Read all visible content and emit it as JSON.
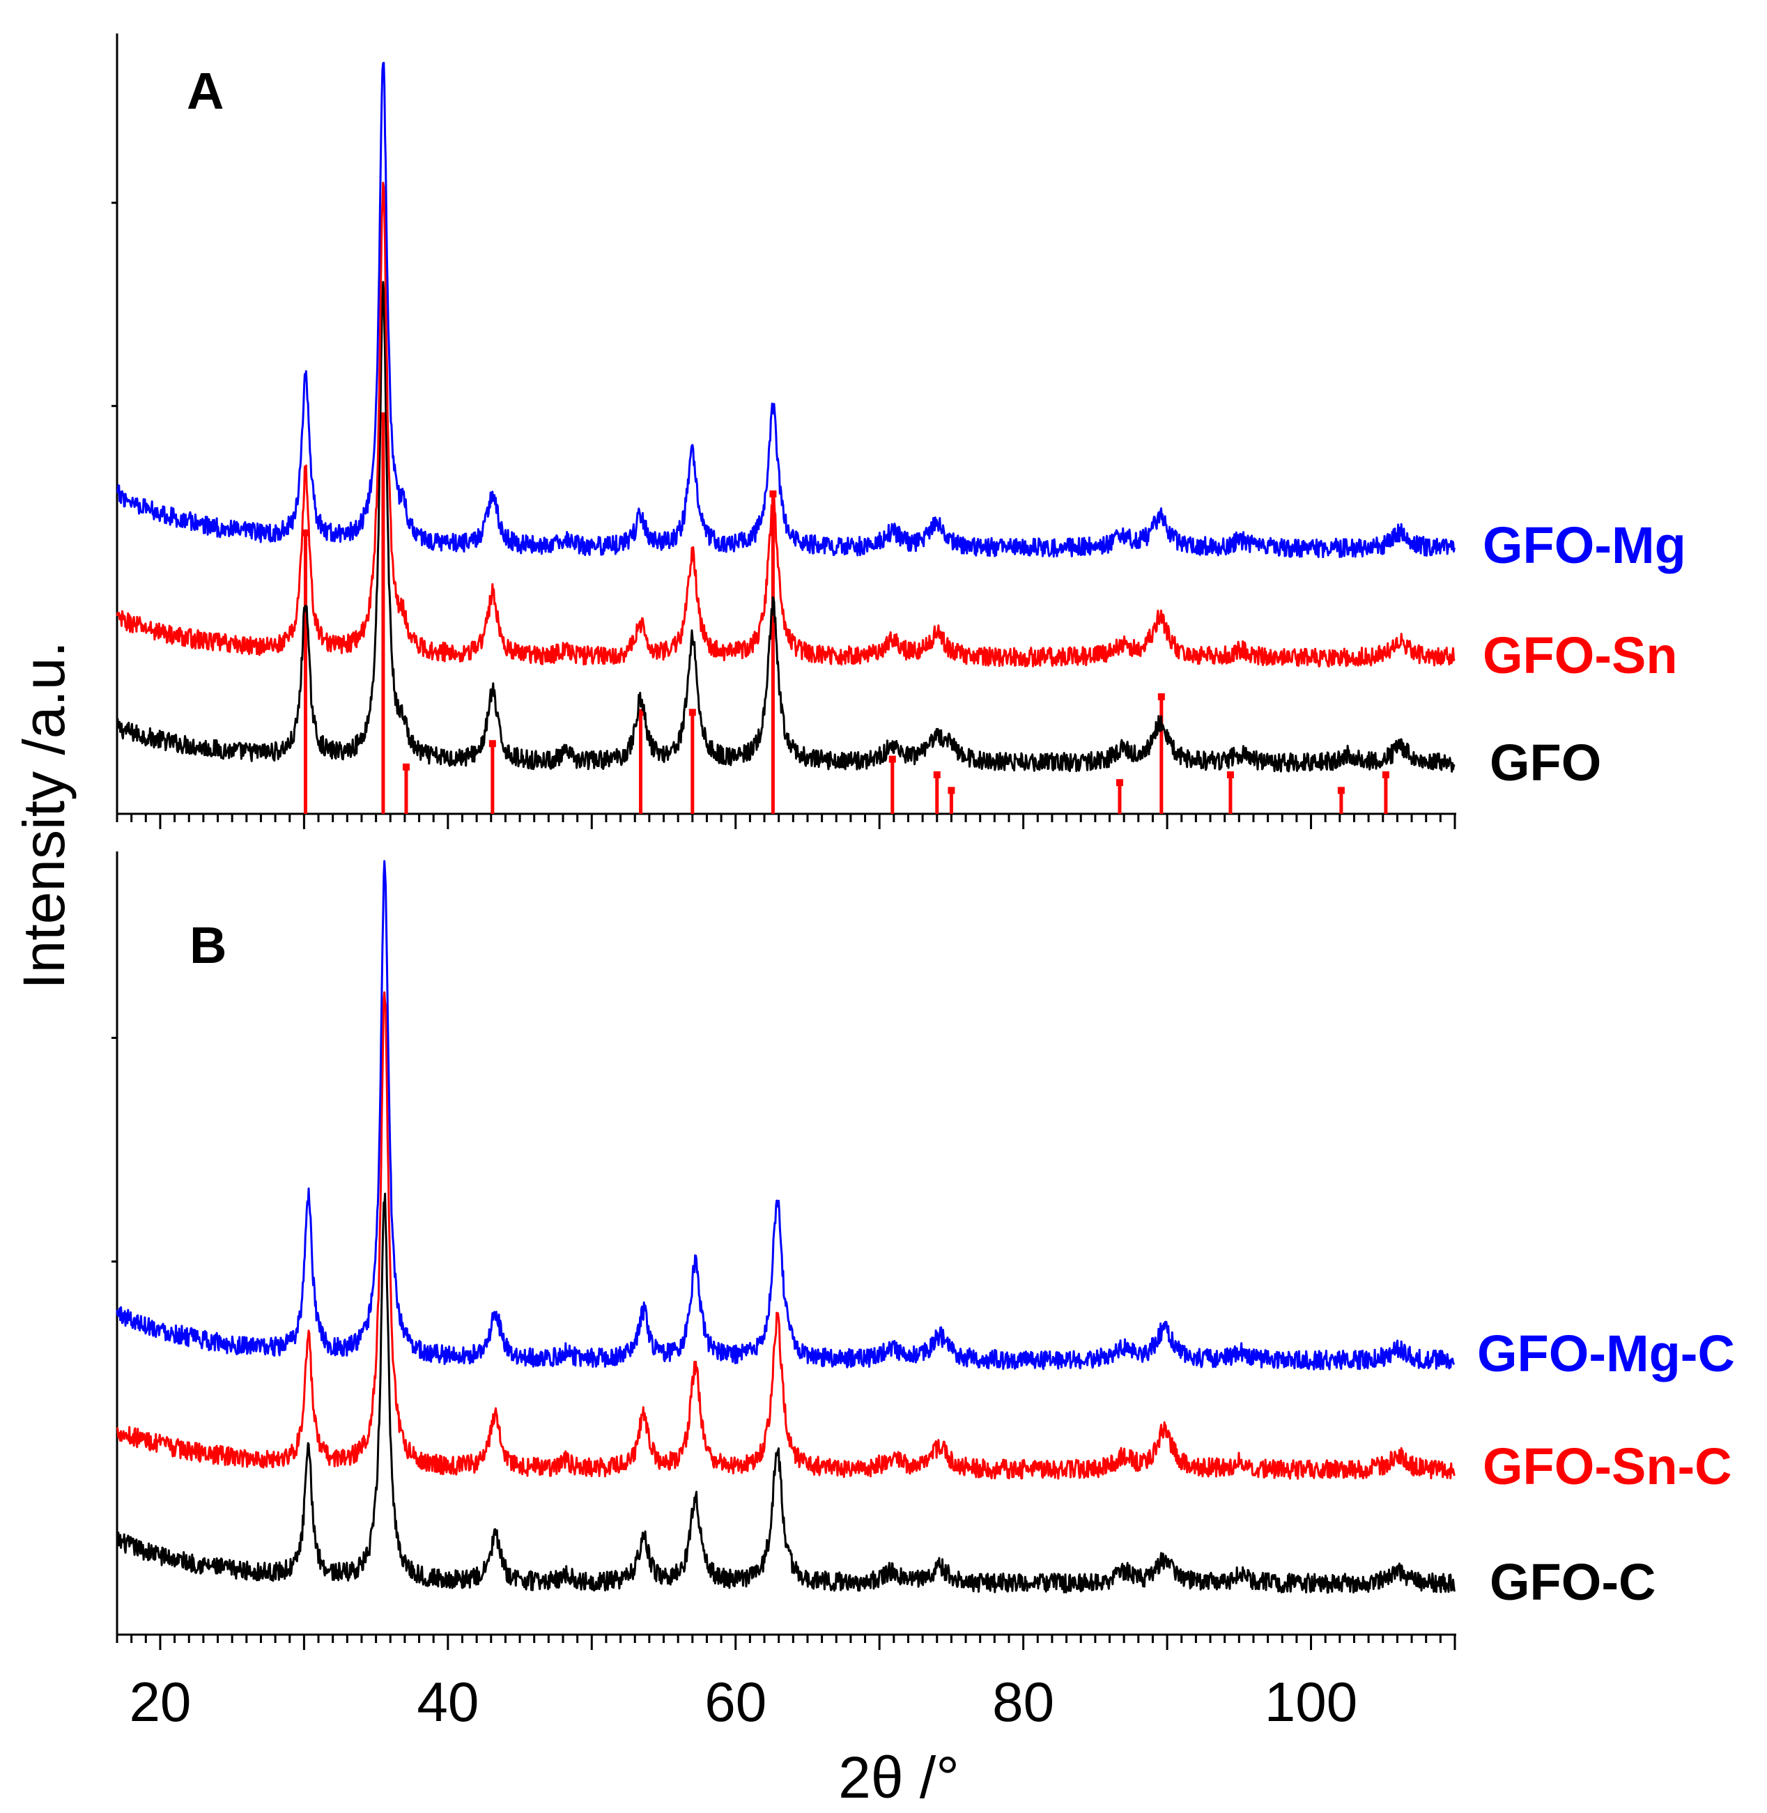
{
  "chart_data": [
    {
      "panel": "A",
      "type": "line",
      "xlabel": "2θ /°",
      "ylabel": "Intensity /a.u.",
      "xlim": [
        17,
        110
      ],
      "ylim": [
        0,
        100
      ],
      "yticks_labeled": false,
      "series": [
        {
          "name": "GFO",
          "label": "GFO",
          "color": "#000000",
          "baseline": 6.5,
          "level_at_start": 11,
          "peaks": [
            [
              30.1,
              20
            ],
            [
              35.5,
              60
            ],
            [
              36.9,
              3
            ],
            [
              43.1,
              9
            ],
            [
              48.2,
              1
            ],
            [
              53.4,
              8
            ],
            [
              57.0,
              16
            ],
            [
              62.6,
              20
            ],
            [
              70.9,
              2
            ],
            [
              74.0,
              3
            ],
            [
              75.0,
              1.5
            ],
            [
              86.9,
              1.5
            ],
            [
              89.5,
              5
            ],
            [
              95.1,
              1
            ],
            [
              102.7,
              1
            ],
            [
              106.2,
              2
            ]
          ]
        },
        {
          "name": "GFO-Sn",
          "label": "GFO-Sn",
          "color": "#ff0000",
          "baseline": 20,
          "level_at_start": 25,
          "peaks": [
            [
              30.1,
              23
            ],
            [
              35.5,
              60
            ],
            [
              36.9,
              3
            ],
            [
              43.1,
              8
            ],
            [
              48.2,
              1
            ],
            [
              53.4,
              4
            ],
            [
              57.0,
              13
            ],
            [
              62.6,
              20
            ],
            [
              70.9,
              2
            ],
            [
              74.0,
              3
            ],
            [
              86.9,
              1.5
            ],
            [
              89.5,
              5
            ],
            [
              95.1,
              1
            ],
            [
              106.2,
              2
            ]
          ]
        },
        {
          "name": "GFO-Mg",
          "label": "GFO-Mg",
          "color": "#0000ff",
          "baseline": 34,
          "level_at_start": 41,
          "peaks": [
            [
              30.1,
              21
            ],
            [
              35.5,
              62
            ],
            [
              36.9,
              3
            ],
            [
              43.1,
              7
            ],
            [
              48.2,
              1
            ],
            [
              53.4,
              4
            ],
            [
              57.0,
              12
            ],
            [
              62.6,
              18
            ],
            [
              70.9,
              2
            ],
            [
              74.0,
              3
            ],
            [
              86.9,
              1.5
            ],
            [
              89.5,
              4
            ],
            [
              95.1,
              1
            ],
            [
              106.2,
              2
            ]
          ]
        }
      ],
      "reference_pattern": {
        "color": "#ff0000",
        "positions": [
          30.1,
          35.5,
          37.1,
          43.1,
          53.4,
          57.0,
          62.6,
          70.9,
          74.0,
          75.0,
          86.7,
          89.6,
          94.4,
          102.1,
          105.2
        ],
        "heights": [
          36,
          51,
          6,
          9,
          13,
          13,
          41,
          7,
          5,
          3,
          4,
          15,
          5,
          3,
          5
        ]
      },
      "legend": "right"
    },
    {
      "panel": "B",
      "type": "line",
      "xlabel": "2θ /°",
      "ylabel": "Intensity /a.u.",
      "xlim": [
        17,
        110
      ],
      "ylim": [
        0,
        100
      ],
      "yticks_labeled": false,
      "series": [
        {
          "name": "GFO-C",
          "label": "GFO-C",
          "color": "#000000",
          "baseline": 6.5,
          "level_at_start": 12,
          "peaks": [
            [
              30.3,
              16
            ],
            [
              35.6,
              49
            ],
            [
              43.3,
              6
            ],
            [
              48.2,
              1
            ],
            [
              53.6,
              6
            ],
            [
              57.2,
              11
            ],
            [
              62.9,
              17
            ],
            [
              70.9,
              1.5
            ],
            [
              74.2,
              2
            ],
            [
              87.0,
              1.5
            ],
            [
              89.8,
              3
            ],
            [
              95.1,
              1
            ],
            [
              106.0,
              1.5
            ]
          ]
        },
        {
          "name": "GFO-Sn-C",
          "label": "GFO-Sn-C",
          "color": "#ff0000",
          "baseline": 21,
          "level_at_start": 26,
          "peaks": [
            [
              30.3,
              16
            ],
            [
              35.6,
              61
            ],
            [
              43.3,
              7
            ],
            [
              48.2,
              1
            ],
            [
              53.6,
              7
            ],
            [
              57.2,
              13
            ],
            [
              62.9,
              19
            ],
            [
              70.9,
              1.5
            ],
            [
              74.2,
              3
            ],
            [
              87.0,
              1.5
            ],
            [
              89.8,
              5
            ],
            [
              95.1,
              1
            ],
            [
              106.0,
              2
            ]
          ]
        },
        {
          "name": "GFO-Mg-C",
          "label": "GFO-Mg-C",
          "color": "#0000ff",
          "baseline": 35,
          "level_at_start": 41,
          "peaks": [
            [
              30.3,
              20
            ],
            [
              35.6,
              63
            ],
            [
              43.3,
              6
            ],
            [
              48.2,
              1
            ],
            [
              53.6,
              6
            ],
            [
              57.2,
              12
            ],
            [
              62.9,
              20
            ],
            [
              70.9,
              1.5
            ],
            [
              74.2,
              3
            ],
            [
              87.0,
              1.5
            ],
            [
              89.8,
              4
            ],
            [
              95.1,
              1
            ],
            [
              106.0,
              1.5
            ]
          ]
        }
      ],
      "legend": "right"
    }
  ],
  "x_axis": {
    "ticks": [
      20,
      40,
      60,
      80,
      100
    ],
    "tick_labels": [
      "20",
      "40",
      "60",
      "80",
      "100"
    ],
    "title": "2θ /°"
  },
  "y_axis_title": "Intensity /a.u."
}
